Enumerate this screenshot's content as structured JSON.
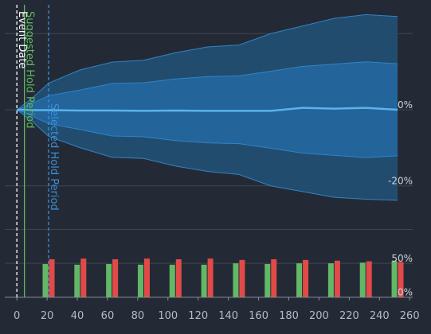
{
  "chart_data": [
    {
      "type": "area",
      "panel": "top",
      "x": [
        0,
        5,
        10,
        21,
        42,
        63,
        84,
        105,
        126,
        147,
        168,
        189,
        210,
        231,
        252
      ],
      "series": [
        {
          "values": [
            0,
            0.0,
            -0.1,
            -0.1,
            -0.2,
            -0.2,
            -0.3,
            -0.2,
            -0.3,
            -0.3,
            -0.3,
            0.5,
            0.3,
            0.5,
            0.0
          ]
        },
        {
          "values": [
            0,
            0.7,
            1.6,
            3.7,
            5.2,
            6.9,
            7.1,
            8.1,
            8.7,
            8.9,
            10.1,
            11.4,
            12.0,
            12.6,
            12.1
          ]
        },
        {
          "values": [
            0,
            -0.7,
            -1.6,
            -3.7,
            -5.2,
            -6.9,
            -7.1,
            -8.1,
            -8.7,
            -8.9,
            -10.1,
            -11.4,
            -12.0,
            -12.6,
            -12.1
          ]
        },
        {
          "values": [
            0,
            1.5,
            3.0,
            7.0,
            10.5,
            12.5,
            13.0,
            15.0,
            16.5,
            17.0,
            20.0,
            22.0,
            24.0,
            25.0,
            24.5
          ]
        },
        {
          "values": [
            0,
            -1.5,
            -3.0,
            -7.0,
            -10.0,
            -12.5,
            -12.8,
            -14.8,
            -16.2,
            -17.0,
            -20.0,
            -21.5,
            -23.0,
            -23.5,
            -23.8
          ]
        }
      ],
      "ylim": [
        -28,
        28
      ],
      "yticks": [
        {
          "value": 0,
          "label": "0%"
        },
        {
          "value": -20,
          "label": "-20%"
        }
      ],
      "gridlines": [
        20,
        0,
        -20
      ],
      "markers": [
        {
          "x": 0,
          "label": "Event Date",
          "style": "dashed",
          "color": "#ffffff"
        },
        {
          "x": 5,
          "label": "Suggested Hold Period",
          "style": "solid",
          "color": "#5fb85f"
        },
        {
          "x": 21,
          "label": "Selected Hold Period",
          "style": "dashed",
          "color": "#3a8fd6"
        }
      ]
    },
    {
      "type": "bar",
      "panel": "bottom",
      "x": [
        21,
        42,
        63,
        84,
        105,
        126,
        147,
        168,
        189,
        210,
        231,
        252
      ],
      "series": [
        {
          "color": "#62b866",
          "values": [
            49,
            48,
            49,
            48,
            48,
            48,
            50,
            49,
            50,
            50,
            51,
            53
          ]
        },
        {
          "color": "#e14a48",
          "values": [
            56,
            57,
            56,
            57,
            56,
            57,
            55,
            56,
            55,
            54,
            53,
            52
          ]
        }
      ],
      "ylim": [
        -5,
        110
      ],
      "yticks": [
        {
          "value": 50,
          "label": "50%"
        },
        {
          "value": 0,
          "label": "0%"
        }
      ],
      "gridlines": [
        100,
        50
      ]
    }
  ],
  "xaxis": {
    "xlim": [
      -8,
      262
    ],
    "ticks": [
      "0",
      "20",
      "40",
      "60",
      "80",
      "100",
      "120",
      "140",
      "160",
      "180",
      "200",
      "220",
      "240",
      "260"
    ]
  },
  "colors": {
    "background": "#242a35",
    "grid": "#3e4552",
    "band_outer": "#234e72",
    "band_inner": "#2467a0",
    "band_edge": "#2f84c8",
    "median": "#5ab4ea"
  }
}
